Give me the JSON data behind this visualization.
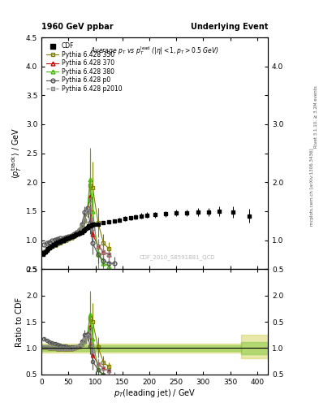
{
  "title_left": "1960 GeV ppbar",
  "title_right": "Underlying Event",
  "subtitle": "Average $p_T$ vs $p_T^{\\rm lead}$ ($|\\eta| < 1, p_T > 0.5$ GeV)",
  "xlabel": "$p_T$(leading jet) / GeV",
  "ylabel_main": "$\\langle p_T^{\\rm track} \\rangle$ / GeV",
  "ylabel_ratio": "Ratio to CDF",
  "watermark": "CDF_2010_S8591881_QCD",
  "rivet_label1": "Rivet 3.1.10, ≥ 3.2M events",
  "rivet_label2": "mcplots.cern.ch [arXiv:1306.3436]",
  "xlim": [
    0,
    420
  ],
  "ylim_main": [
    0.5,
    4.5
  ],
  "ylim_ratio": [
    0.5,
    2.5
  ],
  "yticks_main": [
    0.5,
    1.0,
    1.5,
    2.0,
    2.5,
    3.0,
    3.5,
    4.0,
    4.5
  ],
  "yticks_ratio": [
    0.5,
    1.0,
    1.5,
    2.0,
    2.5
  ],
  "xticks": [
    0,
    50,
    100,
    150,
    200,
    250,
    300,
    350,
    400
  ],
  "cdf_x": [
    2.5,
    5,
    7.5,
    10,
    12.5,
    15,
    17.5,
    20,
    22.5,
    25,
    27.5,
    30,
    32.5,
    35,
    37.5,
    40,
    42.5,
    45,
    47.5,
    50,
    52.5,
    55,
    57.5,
    60,
    62.5,
    65,
    67.5,
    70,
    72.5,
    75,
    77.5,
    80,
    82.5,
    85,
    87.5,
    90,
    92.5,
    95,
    97.5,
    105,
    115,
    125,
    135,
    145,
    155,
    165,
    175,
    185,
    195,
    210,
    230,
    250,
    270,
    290,
    310,
    330,
    355,
    385
  ],
  "cdf_y": [
    0.76,
    0.78,
    0.8,
    0.83,
    0.85,
    0.87,
    0.89,
    0.9,
    0.92,
    0.93,
    0.95,
    0.96,
    0.97,
    0.98,
    0.99,
    1.0,
    1.01,
    1.02,
    1.03,
    1.04,
    1.05,
    1.06,
    1.07,
    1.08,
    1.09,
    1.1,
    1.11,
    1.12,
    1.13,
    1.14,
    1.16,
    1.18,
    1.2,
    1.22,
    1.24,
    1.25,
    1.26,
    1.27,
    1.27,
    1.28,
    1.3,
    1.32,
    1.33,
    1.35,
    1.37,
    1.38,
    1.4,
    1.42,
    1.43,
    1.44,
    1.45,
    1.47,
    1.47,
    1.48,
    1.48,
    1.5,
    1.48,
    1.42
  ],
  "cdf_yerr": [
    0.02,
    0.02,
    0.02,
    0.02,
    0.02,
    0.02,
    0.02,
    0.02,
    0.02,
    0.02,
    0.02,
    0.02,
    0.02,
    0.02,
    0.02,
    0.02,
    0.02,
    0.02,
    0.02,
    0.02,
    0.02,
    0.02,
    0.02,
    0.02,
    0.02,
    0.02,
    0.02,
    0.02,
    0.02,
    0.02,
    0.02,
    0.02,
    0.02,
    0.02,
    0.03,
    0.03,
    0.03,
    0.03,
    0.04,
    0.03,
    0.03,
    0.03,
    0.03,
    0.04,
    0.04,
    0.04,
    0.04,
    0.05,
    0.05,
    0.05,
    0.05,
    0.06,
    0.06,
    0.07,
    0.07,
    0.08,
    0.1,
    0.12
  ],
  "p350_x": [
    5,
    10,
    15,
    20,
    25,
    30,
    35,
    40,
    45,
    50,
    55,
    60,
    65,
    70,
    75,
    80,
    85,
    90,
    95,
    105,
    115,
    125
  ],
  "p350_y": [
    0.8,
    0.85,
    0.88,
    0.91,
    0.93,
    0.95,
    0.97,
    0.99,
    1.01,
    1.03,
    1.05,
    1.08,
    1.12,
    1.17,
    1.24,
    1.34,
    1.5,
    1.95,
    1.9,
    1.3,
    0.95,
    0.85
  ],
  "p350_yerr": [
    0.01,
    0.01,
    0.01,
    0.01,
    0.01,
    0.01,
    0.01,
    0.01,
    0.01,
    0.01,
    0.01,
    0.01,
    0.02,
    0.02,
    0.03,
    0.05,
    0.1,
    0.55,
    0.45,
    0.25,
    0.15,
    0.12
  ],
  "p370_x": [
    5,
    10,
    15,
    20,
    25,
    30,
    35,
    40,
    45,
    50,
    55,
    60,
    65,
    70,
    75,
    80,
    85,
    90,
    95,
    105,
    115,
    125
  ],
  "p370_y": [
    0.8,
    0.85,
    0.88,
    0.91,
    0.93,
    0.95,
    0.97,
    0.99,
    1.01,
    1.03,
    1.05,
    1.08,
    1.12,
    1.17,
    1.24,
    1.34,
    1.5,
    1.75,
    1.1,
    0.9,
    0.8,
    0.75
  ],
  "p370_yerr": [
    0.01,
    0.01,
    0.01,
    0.01,
    0.01,
    0.01,
    0.01,
    0.01,
    0.01,
    0.01,
    0.01,
    0.01,
    0.02,
    0.02,
    0.03,
    0.05,
    0.1,
    0.2,
    0.18,
    0.12,
    0.1,
    0.1
  ],
  "p380_x": [
    5,
    10,
    15,
    20,
    25,
    30,
    35,
    40,
    45,
    50,
    55,
    60,
    65,
    70,
    75,
    80,
    85,
    90,
    95,
    105,
    115,
    125
  ],
  "p380_y": [
    0.8,
    0.85,
    0.88,
    0.91,
    0.93,
    0.95,
    0.97,
    0.99,
    1.01,
    1.03,
    1.05,
    1.08,
    1.12,
    1.17,
    1.24,
    1.34,
    1.5,
    2.05,
    1.5,
    0.75,
    0.6,
    0.55
  ],
  "p380_yerr": [
    0.01,
    0.01,
    0.01,
    0.01,
    0.01,
    0.01,
    0.01,
    0.01,
    0.01,
    0.01,
    0.01,
    0.01,
    0.02,
    0.02,
    0.03,
    0.05,
    0.1,
    0.55,
    0.4,
    0.25,
    0.2,
    0.18
  ],
  "p0_x": [
    5,
    10,
    15,
    20,
    25,
    30,
    35,
    40,
    45,
    50,
    55,
    60,
    65,
    70,
    75,
    80,
    85,
    90,
    95,
    105,
    115,
    125,
    135
  ],
  "p0_y": [
    0.92,
    0.95,
    0.97,
    0.99,
    1.01,
    1.02,
    1.03,
    1.04,
    1.05,
    1.06,
    1.08,
    1.1,
    1.13,
    1.18,
    1.28,
    1.48,
    1.55,
    1.3,
    0.95,
    0.75,
    0.65,
    0.6,
    0.6
  ],
  "p0_yerr": [
    0.01,
    0.01,
    0.01,
    0.01,
    0.01,
    0.01,
    0.01,
    0.01,
    0.01,
    0.01,
    0.01,
    0.02,
    0.02,
    0.03,
    0.05,
    0.1,
    0.15,
    0.2,
    0.2,
    0.15,
    0.1,
    0.1,
    0.12
  ],
  "p2010_x": [
    5,
    10,
    15,
    20,
    25,
    30,
    35,
    40,
    45,
    50,
    55,
    60,
    65,
    70,
    75,
    80,
    85,
    90,
    95,
    105,
    115,
    125
  ],
  "p2010_y": [
    0.8,
    0.85,
    0.88,
    0.91,
    0.93,
    0.95,
    0.97,
    0.99,
    1.01,
    1.03,
    1.05,
    1.08,
    1.12,
    1.17,
    1.24,
    1.34,
    1.5,
    1.7,
    1.2,
    0.9,
    0.8,
    0.75
  ],
  "p2010_yerr": [
    0.01,
    0.01,
    0.01,
    0.01,
    0.01,
    0.01,
    0.01,
    0.01,
    0.01,
    0.01,
    0.01,
    0.01,
    0.02,
    0.02,
    0.03,
    0.05,
    0.1,
    0.2,
    0.18,
    0.12,
    0.1,
    0.1
  ],
  "color_cdf": "#000000",
  "color_350": "#808000",
  "color_370": "#cc0000",
  "color_380": "#44bb00",
  "color_p0": "#555555",
  "color_p2010": "#888888",
  "band_yellow": "#cccc44",
  "band_green": "#88cc44",
  "band_yellow_alpha": 0.45,
  "band_green_alpha": 0.55
}
